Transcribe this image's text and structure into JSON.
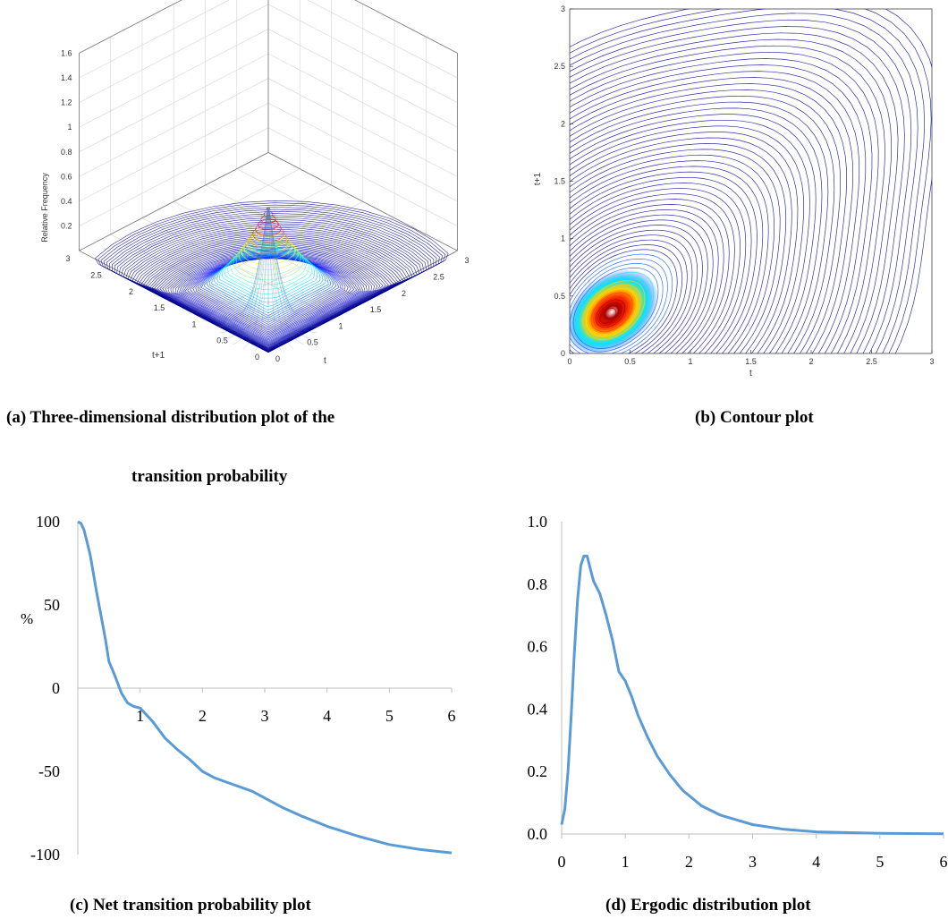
{
  "figure": {
    "captions": {
      "a_line1": "(a) Three-dimensional distribution plot of the",
      "a_line2": "transition probability",
      "b": "(b) Contour plot",
      "c": "(c) Net transition probability plot",
      "d": "(d) Ergodic distribution plot"
    }
  },
  "chart_data": [
    {
      "id": "a",
      "type": "surface3d",
      "zlabel": "Relative Frequency",
      "xlabel": "t",
      "ylabel": "t+1",
      "z_ticks": [
        "0.2",
        "0.4",
        "0.6",
        "0.8",
        "1",
        "1.2",
        "1.4",
        "1.6"
      ],
      "x_ticks": [
        "0",
        "0.5",
        "1",
        "1.5",
        "2",
        "2.5",
        "3"
      ],
      "y_ticks": [
        "0",
        "0.5",
        "1",
        "1.5",
        "2",
        "2.5",
        "3"
      ],
      "xlim": [
        0,
        3
      ],
      "ylim": [
        0,
        3
      ],
      "zlim": [
        0,
        1.6
      ],
      "peak": {
        "t": 0.35,
        "t1": 0.35,
        "z": 0.95
      },
      "colormap": [
        "#00008f",
        "#0000ff",
        "#00ffff",
        "#ffff00",
        "#ff0000",
        "#800000"
      ]
    },
    {
      "id": "b",
      "type": "contour",
      "xlabel": "t",
      "ylabel": "t+1",
      "x_ticks": [
        "0",
        "0.5",
        "1",
        "1.5",
        "2",
        "2.5",
        "3"
      ],
      "y_ticks": [
        "0",
        "0.5",
        "1",
        "1.5",
        "2",
        "2.5",
        "3"
      ],
      "xlim": [
        0,
        3
      ],
      "ylim": [
        0,
        3
      ],
      "center": {
        "t": 0.32,
        "t1": 0.33
      },
      "colormap": [
        "#00008f",
        "#0000ff",
        "#00ffff",
        "#ffff00",
        "#ff0000",
        "#800000"
      ]
    },
    {
      "id": "c",
      "type": "line",
      "ylabel": "%",
      "xlim": [
        0,
        6
      ],
      "ylim": [
        -100,
        100
      ],
      "x_ticks": [
        "1",
        "2",
        "3",
        "4",
        "5",
        "6"
      ],
      "y_ticks": [
        "100",
        "50",
        "0",
        "-50",
        "-100"
      ],
      "color": "#5b9bd5",
      "x": [
        0,
        0.05,
        0.1,
        0.2,
        0.3,
        0.4,
        0.45,
        0.5,
        0.6,
        0.7,
        0.8,
        0.9,
        1.0,
        1.2,
        1.4,
        1.6,
        1.8,
        2.0,
        2.2,
        2.5,
        2.8,
        3.0,
        3.3,
        3.6,
        4.0,
        4.5,
        5.0,
        5.5,
        6.0
      ],
      "y": [
        100,
        99,
        95,
        80,
        58,
        38,
        28,
        16,
        7,
        -3,
        -9,
        -11,
        -12,
        -20,
        -30,
        -37,
        -43,
        -50,
        -54,
        -58,
        -62,
        -66,
        -72,
        -77,
        -83,
        -89,
        -94,
        -97,
        -99
      ]
    },
    {
      "id": "d",
      "type": "line",
      "xlim": [
        0,
        6
      ],
      "ylim": [
        0,
        1.0
      ],
      "x_ticks": [
        "0",
        "1",
        "2",
        "3",
        "4",
        "5",
        "6"
      ],
      "y_ticks": [
        "1.0",
        "0.8",
        "0.6",
        "0.4",
        "0.2",
        "0.0"
      ],
      "color": "#5b9bd5",
      "x": [
        0,
        0.05,
        0.1,
        0.15,
        0.2,
        0.25,
        0.3,
        0.35,
        0.4,
        0.45,
        0.5,
        0.6,
        0.7,
        0.8,
        0.9,
        1.0,
        1.1,
        1.2,
        1.35,
        1.5,
        1.7,
        1.9,
        2.2,
        2.5,
        3.0,
        3.5,
        4.0,
        5.0,
        6.0
      ],
      "y": [
        0.03,
        0.08,
        0.2,
        0.38,
        0.58,
        0.75,
        0.86,
        0.89,
        0.89,
        0.85,
        0.81,
        0.77,
        0.7,
        0.62,
        0.52,
        0.49,
        0.44,
        0.38,
        0.31,
        0.25,
        0.19,
        0.14,
        0.09,
        0.06,
        0.03,
        0.015,
        0.007,
        0.002,
        0.001
      ]
    }
  ]
}
